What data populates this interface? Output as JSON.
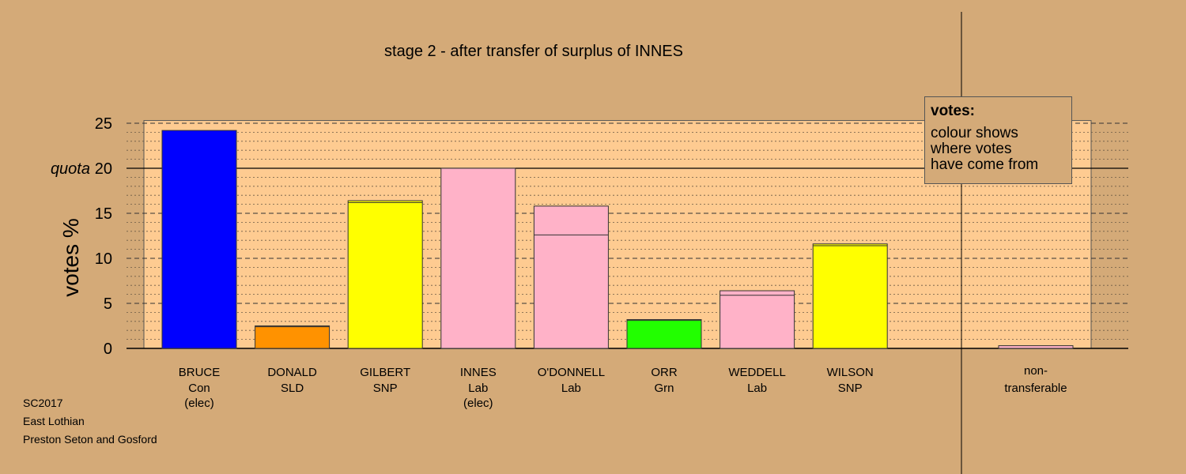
{
  "chart_data": {
    "type": "bar",
    "title": "stage 2 - after transfer of surplus of INNES",
    "ylabel": "votes %",
    "ylim": [
      0,
      25
    ],
    "yticks": [
      "0",
      "5",
      "10",
      "15",
      "20",
      "25"
    ],
    "quota_label": "quota",
    "quota_value": 20,
    "categories": [
      {
        "name": "BRUCE",
        "party": "Con",
        "note": "(elec)",
        "color": "#0000FF",
        "previous": 24.2,
        "total": 24.2
      },
      {
        "name": "DONALD",
        "party": "SLD",
        "note": "",
        "color": "#FF9200",
        "previous": 2.4,
        "total": 2.5
      },
      {
        "name": "GILBERT",
        "party": "SNP",
        "note": "",
        "color": "#FFFF00",
        "previous": 16.2,
        "total": 16.4
      },
      {
        "name": "INNES",
        "party": "Lab",
        "note": "(elec)",
        "color": "#FFB2C8",
        "previous": 20.0,
        "total": 20.0
      },
      {
        "name": "O'DONNELL",
        "party": "Lab",
        "note": "",
        "color": "#FFB2C8",
        "previous": 12.6,
        "total": 15.8
      },
      {
        "name": "ORR",
        "party": "Grn",
        "note": "",
        "color": "#22FF00",
        "previous": 3.1,
        "total": 3.2
      },
      {
        "name": "WEDDELL",
        "party": "Lab",
        "note": "",
        "color": "#FFB2C8",
        "previous": 5.9,
        "total": 6.4
      },
      {
        "name": "WILSON",
        "party": "SNP",
        "note": "",
        "color": "#FFFF00",
        "previous": 11.4,
        "total": 11.6
      }
    ],
    "nontransferable": {
      "label_line1": "non-",
      "label_line2": "transferable",
      "color": "#FFB2C8",
      "value": 0.3
    },
    "legend": {
      "title": "votes:",
      "lines": [
        "colour shows",
        "where votes",
        "have come from"
      ],
      "placement": "top-right"
    },
    "grid": true
  },
  "footer": [
    "SC2017",
    "East Lothian",
    "Preston Seton and Gosford"
  ]
}
